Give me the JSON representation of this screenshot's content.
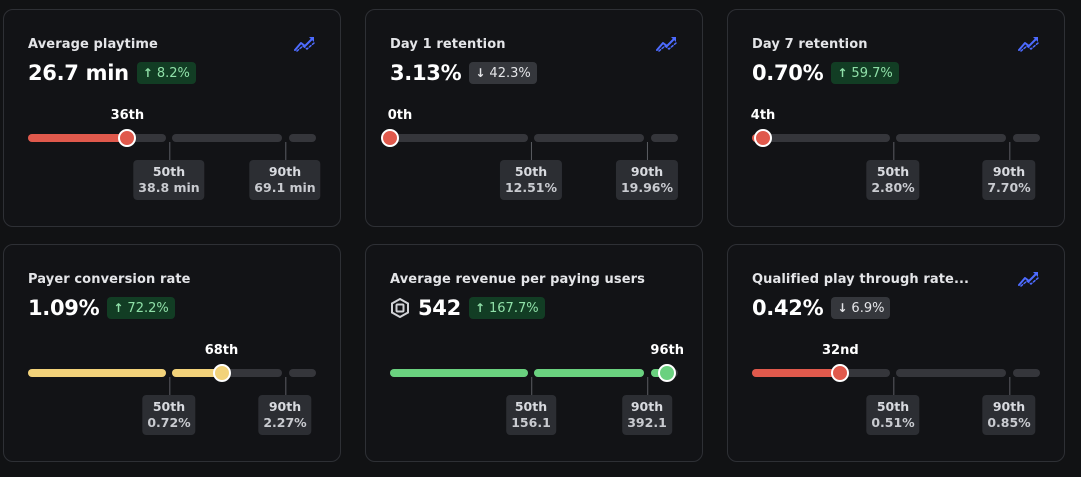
{
  "colors": {
    "red": "#e0594c",
    "yellow": "#f2d27a",
    "green": "#6ad17f",
    "track": "#35363b",
    "trend_icon": "#4d6bff"
  },
  "cards": [
    {
      "title": "Average playtime",
      "value": "26.7 min",
      "delta": "8.2%",
      "delta_direction": "up",
      "show_trend_icon": true,
      "show_robux_icon": false,
      "percentile_label": "36th",
      "percentile_value": 36,
      "color": "red",
      "bench_50_rank": "50th",
      "bench_50_value": "38.8 min",
      "bench_90_rank": "90th",
      "bench_90_value": "69.1 min"
    },
    {
      "title": "Day 1 retention",
      "value": "3.13%",
      "delta": "42.3%",
      "delta_direction": "down",
      "show_trend_icon": true,
      "show_robux_icon": false,
      "percentile_label": "0th",
      "percentile_value": 0,
      "color": "red",
      "bench_50_rank": "50th",
      "bench_50_value": "12.51%",
      "bench_90_rank": "90th",
      "bench_90_value": "19.96%"
    },
    {
      "title": "Day 7 retention",
      "value": "0.70%",
      "delta": "59.7%",
      "delta_direction": "up",
      "show_trend_icon": true,
      "show_robux_icon": false,
      "percentile_label": "4th",
      "percentile_value": 4,
      "color": "red",
      "bench_50_rank": "50th",
      "bench_50_value": "2.80%",
      "bench_90_rank": "90th",
      "bench_90_value": "7.70%"
    },
    {
      "title": "Payer conversion rate",
      "value": "1.09%",
      "delta": "72.2%",
      "delta_direction": "up",
      "show_trend_icon": false,
      "show_robux_icon": false,
      "percentile_label": "68th",
      "percentile_value": 68,
      "color": "yellow",
      "bench_50_rank": "50th",
      "bench_50_value": "0.72%",
      "bench_90_rank": "90th",
      "bench_90_value": "2.27%"
    },
    {
      "title": "Average revenue per paying users",
      "value": "542",
      "delta": "167.7%",
      "delta_direction": "up",
      "show_trend_icon": false,
      "show_robux_icon": true,
      "percentile_label": "96th",
      "percentile_value": 96,
      "color": "green",
      "bench_50_rank": "50th",
      "bench_50_value": "156.1",
      "bench_90_rank": "90th",
      "bench_90_value": "392.1"
    },
    {
      "title": "Qualified play through rate...",
      "value": "0.42%",
      "delta": "6.9%",
      "delta_direction": "down",
      "show_trend_icon": true,
      "show_robux_icon": false,
      "percentile_label": "32nd",
      "percentile_value": 32,
      "color": "red",
      "bench_50_rank": "50th",
      "bench_50_value": "0.51%",
      "bench_90_rank": "90th",
      "bench_90_value": "0.85%"
    }
  ]
}
